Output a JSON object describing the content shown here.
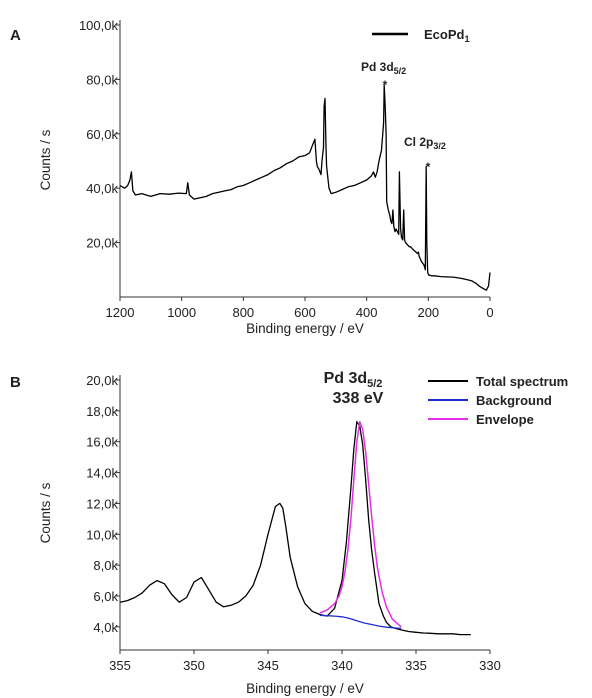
{
  "chart_data": [
    {
      "type": "line",
      "panel_label": "A",
      "xlabel": "Binding energy / eV",
      "ylabel": "Counts / s",
      "x_reversed": true,
      "xlim": [
        1200,
        0
      ],
      "ylim": [
        0,
        100000
      ],
      "x_ticks": [
        "1200",
        "1000",
        "800",
        "600",
        "400",
        "200",
        "0"
      ],
      "y_ticks": [
        "20,0k",
        "40,0k",
        "60,0k",
        "80,0k",
        "100,0k"
      ],
      "legend": {
        "position": "top-right",
        "entries": [
          {
            "name": "EcoPd",
            "sub": "1",
            "color": "#000000"
          }
        ]
      },
      "annotations": [
        {
          "base": "Pd 3d",
          "sub": "5/2",
          "marker": "*"
        },
        {
          "base": "Cl 2p",
          "sub": "3/2",
          "marker": "*"
        }
      ],
      "series": [
        {
          "name": "EcoPd1",
          "color": "#000000",
          "x": [
            1200,
            1185,
            1175,
            1168,
            1163,
            1158,
            1150,
            1130,
            1100,
            1070,
            1040,
            1010,
            985,
            980,
            975,
            960,
            940,
            920,
            900,
            880,
            860,
            840,
            820,
            800,
            780,
            760,
            740,
            720,
            700,
            680,
            660,
            640,
            620,
            600,
            585,
            575,
            568,
            563,
            560,
            555,
            548,
            545,
            540,
            538,
            535,
            532,
            530,
            527,
            522,
            515,
            500,
            480,
            460,
            440,
            420,
            400,
            385,
            378,
            372,
            366,
            360,
            352,
            345,
            343,
            340,
            337,
            335,
            330,
            325,
            322,
            318,
            315,
            312,
            308,
            305,
            300,
            296,
            294,
            290,
            287,
            283,
            280,
            277,
            274,
            270,
            266,
            262,
            258,
            254,
            250,
            245,
            240,
            235,
            232,
            230,
            226,
            222,
            219,
            215,
            212,
            210,
            207,
            205,
            202,
            200,
            198,
            195,
            190,
            180,
            160,
            140,
            120,
            100,
            80,
            60,
            45,
            35,
            28,
            20,
            12,
            5,
            0
          ],
          "y": [
            41000,
            40000,
            41000,
            43000,
            46000,
            39000,
            37500,
            38000,
            37000,
            38000,
            37800,
            38200,
            38000,
            42000,
            37500,
            36000,
            36500,
            37000,
            38000,
            38500,
            39000,
            39500,
            40500,
            41000,
            42000,
            43000,
            44000,
            45000,
            46500,
            47500,
            49000,
            50000,
            51500,
            52000,
            53000,
            56000,
            58000,
            50000,
            48000,
            47000,
            45000,
            50000,
            55000,
            70000,
            73000,
            55000,
            48000,
            45000,
            40000,
            38000,
            38500,
            39500,
            40500,
            41000,
            42000,
            43000,
            44500,
            46000,
            44000,
            46000,
            50000,
            54000,
            64000,
            78000,
            70000,
            60000,
            35000,
            32000,
            30000,
            28000,
            27000,
            32000,
            26000,
            24000,
            25000,
            24000,
            23000,
            46000,
            25000,
            22000,
            21000,
            32000,
            21000,
            20000,
            19500,
            19000,
            18500,
            18500,
            18000,
            17500,
            17000,
            16500,
            16000,
            16500,
            15000,
            14000,
            13000,
            12500,
            12000,
            11000,
            10000,
            48000,
            20000,
            9000,
            8500,
            8000,
            8000,
            7800,
            7800,
            7500,
            7400,
            7300,
            7000,
            6500,
            6000,
            5000,
            4000,
            3500,
            3000,
            2500,
            4000,
            9000
          ]
        }
      ]
    },
    {
      "type": "line",
      "panel_label": "B",
      "xlabel": "Binding energy / eV",
      "ylabel": "Counts / s",
      "x_reversed": true,
      "xlim": [
        355,
        330
      ],
      "ylim": [
        2500,
        20000
      ],
      "x_ticks": [
        "355",
        "350",
        "345",
        "340",
        "335",
        "330"
      ],
      "y_ticks": [
        "4,0k",
        "6,0k",
        "8,0k",
        "10,0k",
        "12,0k",
        "14,0k",
        "16,0k",
        "18,0k",
        "20,0k"
      ],
      "legend": {
        "position": "top-right",
        "entries": [
          {
            "name": "Total spectrum",
            "color": "#000000"
          },
          {
            "name": "Background",
            "color": "#1f2fcf"
          },
          {
            "name": "Envelope",
            "color": "#e62ee6"
          }
        ]
      },
      "annotations": [
        {
          "base": "Pd 3d",
          "sub": "5/2",
          "line2": "338 eV"
        }
      ],
      "series": [
        {
          "name": "Total spectrum",
          "color": "#000000",
          "x": [
            355,
            354.5,
            354,
            353.5,
            353,
            352.5,
            352,
            351.5,
            351,
            350.5,
            350,
            349.5,
            349,
            348.5,
            348,
            347.5,
            347,
            346.5,
            346,
            345.5,
            345,
            344.5,
            344.2,
            344,
            343.8,
            343.5,
            343,
            342.5,
            342,
            341.5,
            341,
            340.5,
            340,
            339.7,
            339.4,
            339.2,
            339,
            338.8,
            338.6,
            338.4,
            338.2,
            338,
            337.8,
            337.5,
            337.2,
            337,
            336.7,
            336.4,
            336,
            335.5,
            335,
            334.5,
            334,
            333.5,
            333,
            332.5,
            332,
            331.5,
            331.3
          ],
          "y": [
            5600,
            5700,
            5900,
            6200,
            6700,
            7000,
            6800,
            6100,
            5600,
            5900,
            6900,
            7200,
            6400,
            5600,
            5300,
            5400,
            5600,
            6000,
            6700,
            8000,
            10000,
            11800,
            12000,
            11700,
            10500,
            8500,
            6600,
            5500,
            5000,
            4800,
            4700,
            5200,
            7000,
            9500,
            13000,
            15500,
            17300,
            17000,
            15800,
            13500,
            11000,
            9000,
            7500,
            5500,
            4700,
            4300,
            4000,
            3900,
            3800,
            3700,
            3650,
            3600,
            3580,
            3550,
            3550,
            3550,
            3500,
            3500,
            3500
          ]
        },
        {
          "name": "Background",
          "color": "#1f2fcf",
          "x": [
            341.5,
            341,
            340.5,
            340,
            339.5,
            339,
            338.5,
            338,
            337.5,
            337,
            336.5,
            336
          ],
          "y": [
            4750,
            4720,
            4700,
            4650,
            4550,
            4400,
            4250,
            4150,
            4050,
            3980,
            3930,
            3900
          ]
        },
        {
          "name": "Envelope",
          "color": "#e62ee6",
          "x": [
            341.5,
            341,
            340.5,
            340.2,
            340,
            339.8,
            339.6,
            339.4,
            339.2,
            339,
            338.8,
            338.6,
            338.4,
            338.2,
            338,
            337.8,
            337.6,
            337.3,
            337,
            336.6,
            336
          ],
          "y": [
            4900,
            5100,
            5500,
            6000,
            6600,
            7600,
            9000,
            11000,
            13500,
            16000,
            17300,
            16800,
            15300,
            13300,
            11200,
            9300,
            7800,
            6300,
            5300,
            4500,
            4000
          ]
        }
      ]
    }
  ]
}
